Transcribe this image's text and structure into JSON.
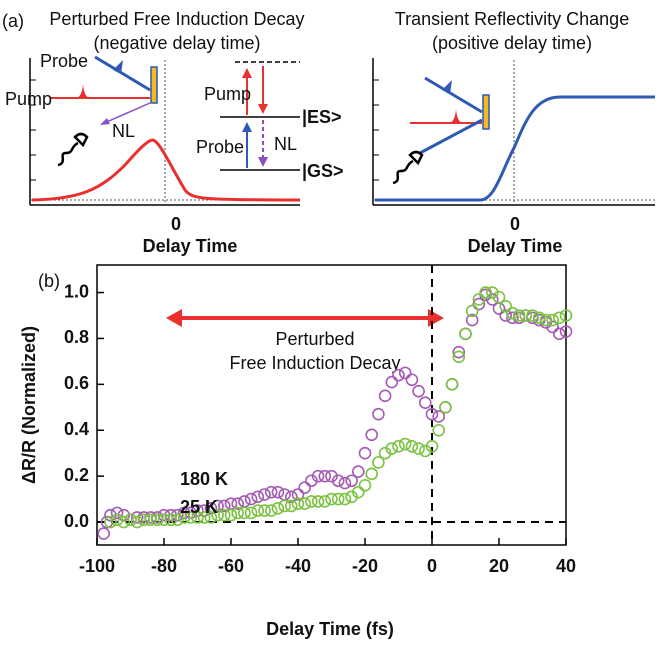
{
  "panel_labels": [
    "(a)",
    "(b)"
  ],
  "panel_a": {
    "left": {
      "title": [
        "Perturbed Free Induction Decay",
        "(negative delay time)"
      ],
      "beam_labels": {
        "probe": "Probe",
        "pump": "Pump",
        "nl": "NL"
      },
      "level_labels": {
        "pump": "Pump",
        "probe": "Probe",
        "nl": "NL",
        "es": "|ES>",
        "gs": "|GS>"
      },
      "zero_label": "0",
      "axis_label": "Delay Time"
    },
    "right": {
      "title": [
        "Transient Reflectivity Change",
        "(positive delay time)"
      ],
      "zero_label": "0",
      "axis_label": "Delay Time"
    }
  },
  "chart_data": {
    "type": "scatter",
    "xlabel": "Delay Time (fs)",
    "ylabel": "ΔR/R (Normalized)",
    "annotation": [
      "Perturbed",
      "Free Induction Decay"
    ],
    "xlim": [
      -100,
      40
    ],
    "ylim": [
      -0.1,
      1.12
    ],
    "xticks": [
      -100,
      -80,
      -60,
      -40,
      -20,
      0,
      20,
      40
    ],
    "yticks": [
      {
        "value": 0,
        "label": "0.0"
      },
      0.2,
      0.4,
      0.6,
      0.8,
      {
        "value": 1,
        "label": "1.0"
      }
    ],
    "series": [
      {
        "name": "180 K",
        "color": "#a45bb5",
        "x": [
          -98,
          -97,
          -96,
          -94,
          -92,
          -90,
          -88,
          -86,
          -84,
          -82,
          -80,
          -78,
          -76,
          -74,
          -72,
          -70,
          -68,
          -66,
          -64,
          -62,
          -60,
          -58,
          -56,
          -54,
          -52,
          -50,
          -48,
          -46,
          -44,
          -42,
          -40,
          -38,
          -36,
          -34,
          -32,
          -30,
          -28,
          -26,
          -24,
          -22,
          -20,
          -18,
          -16,
          -14,
          -12,
          -10,
          -8,
          -6,
          -4,
          -2,
          0,
          2,
          4,
          6,
          8,
          10,
          12,
          14,
          16,
          18,
          20,
          22,
          24,
          26,
          28,
          30,
          32,
          34,
          36,
          38,
          40
        ],
        "values": [
          -0.05,
          0.0,
          0.03,
          0.04,
          0.03,
          0.01,
          0.02,
          0.02,
          0.02,
          0.02,
          0.03,
          0.03,
          0.03,
          0.04,
          0.04,
          0.05,
          0.05,
          0.06,
          0.07,
          0.07,
          0.08,
          0.08,
          0.09,
          0.1,
          0.11,
          0.12,
          0.13,
          0.13,
          0.12,
          0.11,
          0.12,
          0.15,
          0.18,
          0.2,
          0.2,
          0.2,
          0.18,
          0.17,
          0.18,
          0.22,
          0.3,
          0.38,
          0.47,
          0.55,
          0.61,
          0.64,
          0.65,
          0.62,
          0.57,
          0.52,
          0.47,
          0.46,
          0.5,
          0.6,
          0.74,
          0.82,
          0.88,
          0.95,
          0.99,
          0.97,
          0.93,
          0.9,
          0.89,
          0.89,
          0.9,
          0.89,
          0.88,
          0.87,
          0.85,
          0.82,
          0.83
        ]
      },
      {
        "name": "25 K",
        "color": "#7cc242",
        "x": [
          -96,
          -94,
          -92,
          -90,
          -88,
          -86,
          -84,
          -82,
          -80,
          -78,
          -76,
          -74,
          -72,
          -70,
          -68,
          -66,
          -64,
          -62,
          -60,
          -58,
          -56,
          -54,
          -52,
          -50,
          -48,
          -46,
          -44,
          -42,
          -40,
          -38,
          -36,
          -34,
          -32,
          -30,
          -28,
          -26,
          -24,
          -22,
          -20,
          -18,
          -16,
          -14,
          -12,
          -10,
          -8,
          -6,
          -4,
          -2,
          0,
          2,
          4,
          6,
          8,
          10,
          12,
          14,
          16,
          18,
          20,
          22,
          24,
          26,
          28,
          30,
          32,
          34,
          36,
          38,
          40
        ],
        "values": [
          0.0,
          0.01,
          0.0,
          0.01,
          0.0,
          0.01,
          0.01,
          0.01,
          0.01,
          0.01,
          0.01,
          0.02,
          0.02,
          0.02,
          0.02,
          0.02,
          0.03,
          0.03,
          0.03,
          0.04,
          0.04,
          0.04,
          0.05,
          0.05,
          0.05,
          0.06,
          0.07,
          0.07,
          0.08,
          0.08,
          0.09,
          0.09,
          0.09,
          0.1,
          0.1,
          0.1,
          0.11,
          0.13,
          0.16,
          0.21,
          0.26,
          0.3,
          0.32,
          0.33,
          0.34,
          0.33,
          0.32,
          0.31,
          0.33,
          0.4,
          0.5,
          0.6,
          0.72,
          0.82,
          0.92,
          0.97,
          1.0,
          1.0,
          0.98,
          0.94,
          0.91,
          0.9,
          0.9,
          0.9,
          0.89,
          0.88,
          0.88,
          0.89,
          0.9
        ]
      }
    ]
  }
}
